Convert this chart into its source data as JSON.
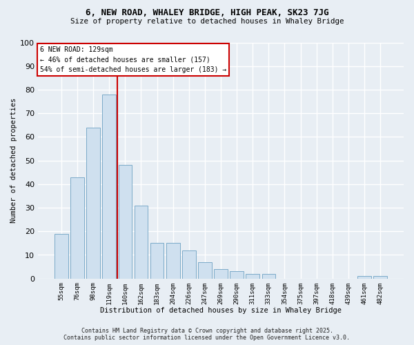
{
  "title1": "6, NEW ROAD, WHALEY BRIDGE, HIGH PEAK, SK23 7JG",
  "title2": "Size of property relative to detached houses in Whaley Bridge",
  "xlabel": "Distribution of detached houses by size in Whaley Bridge",
  "ylabel": "Number of detached properties",
  "categories": [
    "55sqm",
    "76sqm",
    "98sqm",
    "119sqm",
    "140sqm",
    "162sqm",
    "183sqm",
    "204sqm",
    "226sqm",
    "247sqm",
    "269sqm",
    "290sqm",
    "311sqm",
    "333sqm",
    "354sqm",
    "375sqm",
    "397sqm",
    "418sqm",
    "439sqm",
    "461sqm",
    "482sqm"
  ],
  "values": [
    19,
    43,
    64,
    78,
    48,
    31,
    15,
    15,
    12,
    7,
    4,
    3,
    2,
    2,
    0,
    0,
    0,
    0,
    0,
    1,
    1
  ],
  "bar_color": "#cfe0ef",
  "bar_edge_color": "#7aaac8",
  "vline_x": 3.5,
  "vline_color": "#cc0000",
  "annotation_text": "6 NEW ROAD: 129sqm\n← 46% of detached houses are smaller (157)\n54% of semi-detached houses are larger (183) →",
  "annotation_box_color": "#ffffff",
  "annotation_box_edge": "#cc0000",
  "ylim": [
    0,
    100
  ],
  "yticks": [
    0,
    10,
    20,
    30,
    40,
    50,
    60,
    70,
    80,
    90,
    100
  ],
  "footer1": "Contains HM Land Registry data © Crown copyright and database right 2025.",
  "footer2": "Contains public sector information licensed under the Open Government Licence v3.0.",
  "bg_color": "#e8eef4",
  "plot_bg_color": "#e8eef4",
  "grid_color": "#ffffff"
}
